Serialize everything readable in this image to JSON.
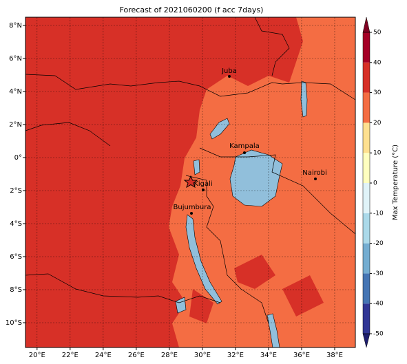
{
  "chart_data": {
    "type": "map",
    "title": "Forecast of 2021060200 (f acc 7days)",
    "xlim": [
      19.3,
      39.25
    ],
    "ylim": [
      -11.5,
      8.5
    ],
    "xticks": [
      {
        "value": 20,
        "label": "20°E"
      },
      {
        "value": 22,
        "label": "22°E"
      },
      {
        "value": 24,
        "label": "24°E"
      },
      {
        "value": 26,
        "label": "26°E"
      },
      {
        "value": 28,
        "label": "28°E"
      },
      {
        "value": 30,
        "label": "30°E"
      },
      {
        "value": 32,
        "label": "32°E"
      },
      {
        "value": 34,
        "label": "34°E"
      },
      {
        "value": 36,
        "label": "36°E"
      },
      {
        "value": 38,
        "label": "38°E"
      }
    ],
    "yticks": [
      {
        "value": -10,
        "label": "10°S"
      },
      {
        "value": -8,
        "label": "8°S"
      },
      {
        "value": -6,
        "label": "6°S"
      },
      {
        "value": -4,
        "label": "4°S"
      },
      {
        "value": -2,
        "label": "2°S"
      },
      {
        "value": 0,
        "label": "0°"
      },
      {
        "value": 2,
        "label": "2°N"
      },
      {
        "value": 4,
        "label": "4°N"
      },
      {
        "value": 6,
        "label": "6°N"
      },
      {
        "value": 8,
        "label": "8°N"
      }
    ],
    "grid": true,
    "cities": [
      "Juba",
      "Kampala",
      "Nairobi",
      "Kigali",
      "Bujumbura"
    ],
    "colorbar": {
      "label": "Max Temperature (°C)",
      "lim": [
        -50,
        50
      ],
      "ticks": [
        -50,
        -40,
        -30,
        -20,
        -10,
        0,
        10,
        20,
        30,
        40,
        50
      ],
      "colors": [
        "#313695",
        "#4575b4",
        "#74add1",
        "#abd9e9",
        "#e0f3f8",
        "#ffffbf",
        "#fee090",
        "#f46d43",
        "#d73027",
        "#a50026"
      ],
      "extend_colors": [
        "#1e1e6e",
        "#7f0022"
      ]
    }
  }
}
